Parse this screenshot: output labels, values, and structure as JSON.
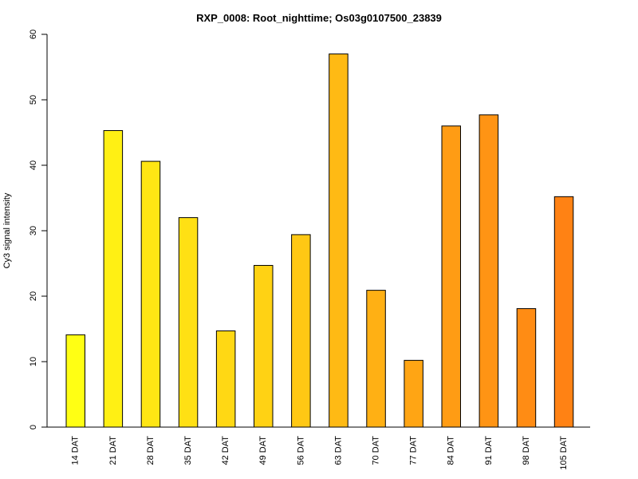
{
  "chart_data": {
    "type": "bar",
    "title": "RXP_0008: Root_nighttime; Os03g0107500_23839",
    "xlabel": "",
    "ylabel": "Cy3 signal intensity",
    "ylim": [
      0,
      60
    ],
    "yticks": [
      0,
      10,
      20,
      30,
      40,
      50,
      60
    ],
    "grid": false,
    "legend": "none",
    "categories": [
      "14 DAT",
      "21 DAT",
      "28 DAT",
      "35 DAT",
      "42 DAT",
      "49 DAT",
      "56 DAT",
      "63 DAT",
      "70 DAT",
      "77 DAT",
      "84 DAT",
      "91 DAT",
      "98 DAT",
      "105 DAT"
    ],
    "values": [
      14.1,
      45.3,
      40.6,
      32.0,
      14.7,
      24.7,
      29.4,
      57.0,
      20.9,
      10.2,
      46.0,
      47.7,
      18.1,
      35.2
    ],
    "colors": [
      "#FFFF14",
      "#FFF014",
      "#FFE614",
      "#FFE014",
      "#FFD814",
      "#FFD214",
      "#FFC814",
      "#FFBA14",
      "#FFB014",
      "#FFA514",
      "#FF9C14",
      "#FF9414",
      "#FF8C14",
      "#FF8214"
    ]
  }
}
